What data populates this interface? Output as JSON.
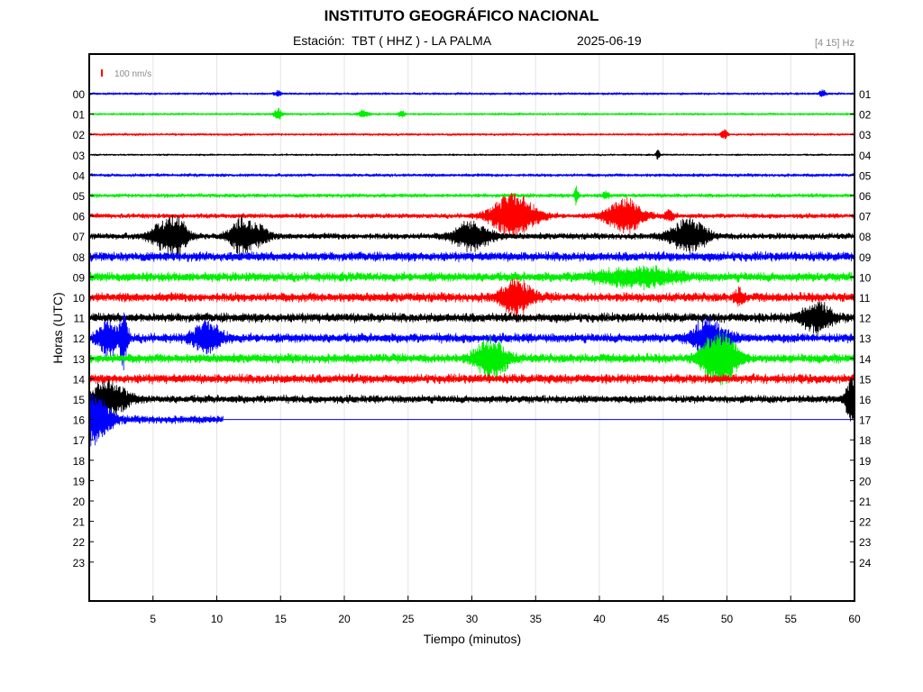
{
  "header": {
    "title": "INSTITUTO GEOGRÁFICO NACIONAL",
    "station": "Estación:  TBT ( HHZ ) - LA PALMA",
    "date": "2025-06-19",
    "band": "[4 15] Hz"
  },
  "chart_data": {
    "type": "line",
    "title": "INSTITUTO GEOGRÁFICO NACIONAL",
    "xlabel": "Tiempo (minutos)",
    "ylabel": "Horas (UTC)",
    "xlim": [
      0,
      60
    ],
    "x_ticks": [
      "5",
      "10",
      "15",
      "20",
      "25",
      "30",
      "35",
      "40",
      "45",
      "50",
      "55",
      "60"
    ],
    "y_ticks_left": [
      "00",
      "01",
      "02",
      "03",
      "04",
      "05",
      "06",
      "07",
      "08",
      "09",
      "10",
      "11",
      "12",
      "13",
      "14",
      "15",
      "16",
      "17",
      "18",
      "19",
      "20",
      "21",
      "22",
      "23"
    ],
    "y_ticks_right": [
      "01",
      "02",
      "03",
      "04",
      "05",
      "06",
      "07",
      "08",
      "09",
      "10",
      "11",
      "12",
      "13",
      "14",
      "15",
      "16",
      "17",
      "18",
      "19",
      "20",
      "21",
      "22",
      "23",
      "24"
    ],
    "scale_label": "100 nm/s",
    "grid": "vertical",
    "series_colors": [
      "#0000ff",
      "#00ee00",
      "#ff0000",
      "#000000"
    ],
    "traces": [
      {
        "hour": "00",
        "color": "#0000ff",
        "noise": 1.5,
        "end_min": 60,
        "events": [
          {
            "t": 14.8,
            "amp": 3,
            "dur": 0.3
          },
          {
            "t": 57.5,
            "amp": 4,
            "dur": 0.3
          }
        ]
      },
      {
        "hour": "01",
        "color": "#00ee00",
        "noise": 1.5,
        "end_min": 60,
        "events": [
          {
            "t": 14.8,
            "amp": 6,
            "dur": 0.4
          },
          {
            "t": 21.5,
            "amp": 4,
            "dur": 0.5
          },
          {
            "t": 24.5,
            "amp": 3,
            "dur": 0.3
          }
        ]
      },
      {
        "hour": "02",
        "color": "#ff0000",
        "noise": 1.5,
        "end_min": 60,
        "events": [
          {
            "t": 49.8,
            "amp": 6,
            "dur": 0.3
          }
        ]
      },
      {
        "hour": "03",
        "color": "#000000",
        "noise": 1.2,
        "end_min": 60,
        "events": [
          {
            "t": 44.6,
            "amp": 5,
            "dur": 0.2
          }
        ]
      },
      {
        "hour": "04",
        "color": "#0000ff",
        "noise": 2,
        "end_min": 60,
        "events": []
      },
      {
        "hour": "05",
        "color": "#00ee00",
        "noise": 2.5,
        "end_min": 60,
        "events": [
          {
            "t": 38.2,
            "amp": 10,
            "dur": 0.2
          },
          {
            "t": 40.5,
            "amp": 4,
            "dur": 0.3
          }
        ]
      },
      {
        "hour": "06",
        "color": "#ff0000",
        "noise": 3,
        "end_min": 60,
        "events": [
          {
            "t": 33.3,
            "amp": 24,
            "dur": 2.2
          },
          {
            "t": 42,
            "amp": 20,
            "dur": 1.8
          },
          {
            "t": 45.5,
            "amp": 5,
            "dur": 0.5
          }
        ]
      },
      {
        "hour": "07",
        "color": "#000000",
        "noise": 4,
        "end_min": 60,
        "events": [
          {
            "t": 6,
            "amp": 16,
            "dur": 1.5
          },
          {
            "t": 7,
            "amp": 12,
            "dur": 1
          },
          {
            "t": 12,
            "amp": 20,
            "dur": 1.2
          },
          {
            "t": 13.5,
            "amp": 10,
            "dur": 0.8
          },
          {
            "t": 30,
            "amp": 16,
            "dur": 1.8
          },
          {
            "t": 47,
            "amp": 18,
            "dur": 1.8
          }
        ]
      },
      {
        "hour": "08",
        "color": "#0000ff",
        "noise": 6,
        "end_min": 60,
        "events": []
      },
      {
        "hour": "09",
        "color": "#00ee00",
        "noise": 6,
        "end_min": 60,
        "events": [
          {
            "t": 43,
            "amp": 9,
            "dur": 4
          }
        ]
      },
      {
        "hour": "10",
        "color": "#ff0000",
        "noise": 6,
        "end_min": 60,
        "events": [
          {
            "t": 33.5,
            "amp": 18,
            "dur": 1.5
          },
          {
            "t": 51,
            "amp": 8,
            "dur": 0.5
          }
        ]
      },
      {
        "hour": "11",
        "color": "#000000",
        "noise": 6,
        "end_min": 60,
        "events": [
          {
            "t": 57,
            "amp": 16,
            "dur": 1.5
          }
        ]
      },
      {
        "hour": "12",
        "color": "#0000ff",
        "noise": 6,
        "end_min": 60,
        "events": [
          {
            "t": 1.5,
            "amp": 18,
            "dur": 1
          },
          {
            "t": 2.7,
            "amp": 30,
            "dur": 0.4
          },
          {
            "t": 9.3,
            "amp": 16,
            "dur": 1.4
          },
          {
            "t": 48.7,
            "amp": 22,
            "dur": 1.6
          }
        ]
      },
      {
        "hour": "13",
        "color": "#00ee00",
        "noise": 6,
        "end_min": 60,
        "events": [
          {
            "t": 31.5,
            "amp": 22,
            "dur": 1.5
          },
          {
            "t": 48.5,
            "amp": 14,
            "dur": 1
          },
          {
            "t": 49.8,
            "amp": 26,
            "dur": 1.4
          }
        ]
      },
      {
        "hour": "14",
        "color": "#ff0000",
        "noise": 6,
        "end_min": 60,
        "events": []
      },
      {
        "hour": "15",
        "color": "#000000",
        "noise": 5,
        "end_min": 60,
        "events": [
          {
            "t": 1.5,
            "amp": 20,
            "dur": 1.8
          },
          {
            "t": 59.8,
            "amp": 24,
            "dur": 0.6
          }
        ]
      },
      {
        "hour": "16",
        "color": "#0000ff",
        "noise": 5,
        "end_min": 10.5,
        "events": [
          {
            "t": 0.3,
            "amp": 28,
            "dur": 1.6
          }
        ]
      }
    ]
  }
}
